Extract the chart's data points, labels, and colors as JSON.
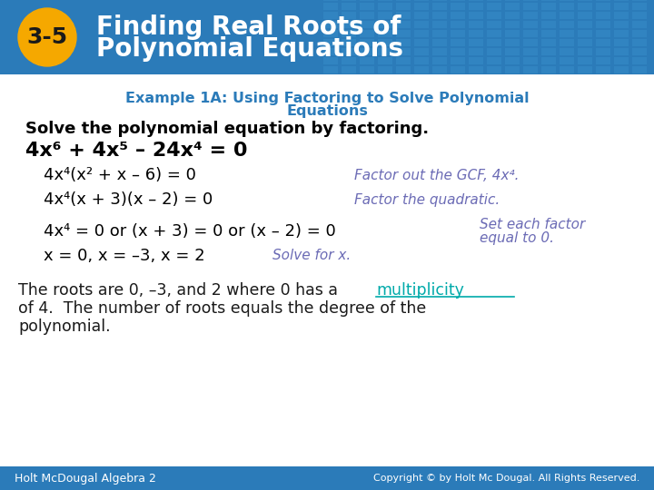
{
  "header_bg_color": "#2B7BB9",
  "header_text_color": "#FFFFFF",
  "badge_color": "#F5A800",
  "badge_text": "3-5",
  "example_title_color": "#2B7BB9",
  "body_bg_color": "#FFFFFF",
  "solve_text": "Solve the polynomial equation by factoring.",
  "solve_text_color": "#000000",
  "eq_main": "4x⁶ + 4x⁵ – 24x⁴ = 0",
  "eq_main_color": "#000000",
  "step1_left": "4x⁴(x² + x – 6) = 0",
  "step1_right": "Factor out the GCF, 4x⁴.",
  "step2_left": "4x⁴(x + 3)(x – 2) = 0",
  "step2_right": "Factor the quadratic.",
  "step3_left": "4x⁴ = 0 or (x + 3) = 0 or (x – 2) = 0",
  "step3_right1": "Set each factor",
  "step3_right2": "equal to 0.",
  "step4_left": "x = 0, x = –3, x = 2",
  "step4_right": "Solve for x.",
  "italic_color": "#6B6BB5",
  "conclusion1": "The roots are 0, –3, and 2 where 0 has a ",
  "conclusion_link": "multiplicity",
  "conclusion2": "of 4.  The number of roots equals the degree of the",
  "conclusion3": "polynomial.",
  "conclusion_color": "#1A1A1A",
  "link_color": "#00AAAA",
  "footer_bg_color": "#2B7BB9",
  "footer_left": "Holt McDougal Algebra 2",
  "footer_right": "Copyright © by Holt Mc Dougal. All Rights Reserved.",
  "footer_text_color": "#FFFFFF"
}
